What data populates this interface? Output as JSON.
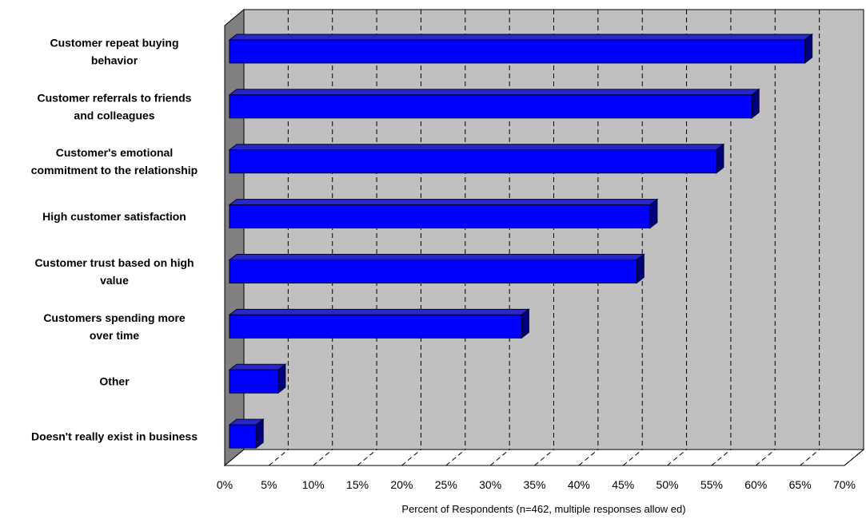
{
  "chart_data": {
    "type": "bar",
    "orientation": "horizontal",
    "three_d": true,
    "title": "",
    "xlabel": "Percent of Respondents (n=462, multiple responses allow ed)",
    "ylabel": "",
    "categories": [
      [
        "Customer repeat buying",
        "behavior"
      ],
      [
        "Customer referrals to friends",
        "and colleagues"
      ],
      [
        "Customer's emotional",
        "commitment to the relationship"
      ],
      [
        "High customer satisfaction"
      ],
      [
        "Customer trust based on high",
        "value"
      ],
      [
        "Customers spending more",
        "over time"
      ],
      [
        "Other"
      ],
      [
        "Doesn't really exist in business"
      ]
    ],
    "values": [
      65,
      59,
      55,
      47.5,
      46,
      33,
      5.5,
      3
    ],
    "xlim": [
      0,
      70
    ],
    "tick_labels": [
      "0%",
      "5%",
      "10%",
      "15%",
      "20%",
      "25%",
      "30%",
      "35%",
      "40%",
      "45%",
      "50%",
      "55%",
      "60%",
      "65%",
      "70%"
    ],
    "grid": "vertical dashed",
    "legend": "none",
    "colors": {
      "bar_front": "#0000ff",
      "bar_top": "#2828c8",
      "bar_side": "#00007a",
      "bar_edge": "#000033",
      "plot_back": "#c0c0c0",
      "plot_wall": "#808080",
      "plot_floor": "#ffffff",
      "grid": "#000000"
    }
  }
}
